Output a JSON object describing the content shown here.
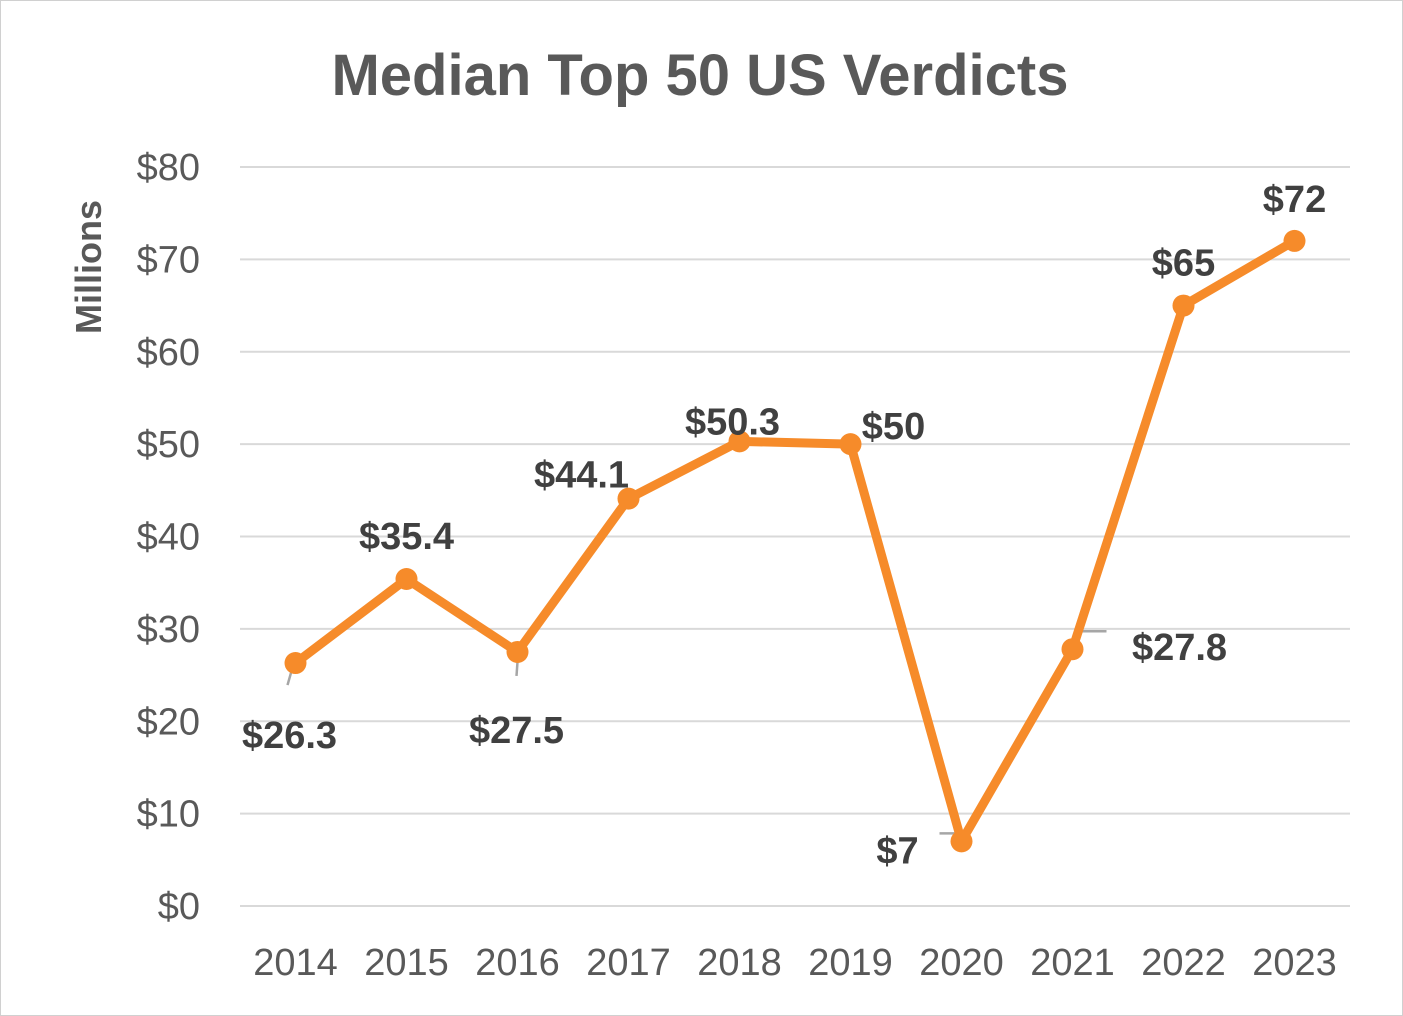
{
  "chart_data": {
    "type": "line",
    "title": "Median Top 50 US Verdicts",
    "xlabel": "",
    "ylabel": "Millions",
    "categories": [
      "2014",
      "2015",
      "2016",
      "2017",
      "2018",
      "2019",
      "2020",
      "2021",
      "2022",
      "2023"
    ],
    "series": [
      {
        "values": [
          26.3,
          35.4,
          27.5,
          44.1,
          50.3,
          50,
          7,
          27.8,
          65,
          72
        ],
        "data_labels": [
          "$26.3",
          "$35.4",
          "$27.5",
          "$44.1",
          "$50.3",
          "$50",
          "$7",
          "$27.8",
          "$65",
          "$72"
        ]
      }
    ],
    "ylim": [
      0,
      80
    ],
    "yticks": [
      0,
      10,
      20,
      30,
      40,
      50,
      60,
      70,
      80
    ],
    "ytick_labels": [
      "$0",
      "$10",
      "$20",
      "$30",
      "$40",
      "$50",
      "$60",
      "$70",
      "$80"
    ],
    "grid": true,
    "legend": "none",
    "colors": {
      "line": "#F68B2A",
      "grid": "#d9d9d9",
      "text": "#595959",
      "label": "#404040"
    }
  }
}
